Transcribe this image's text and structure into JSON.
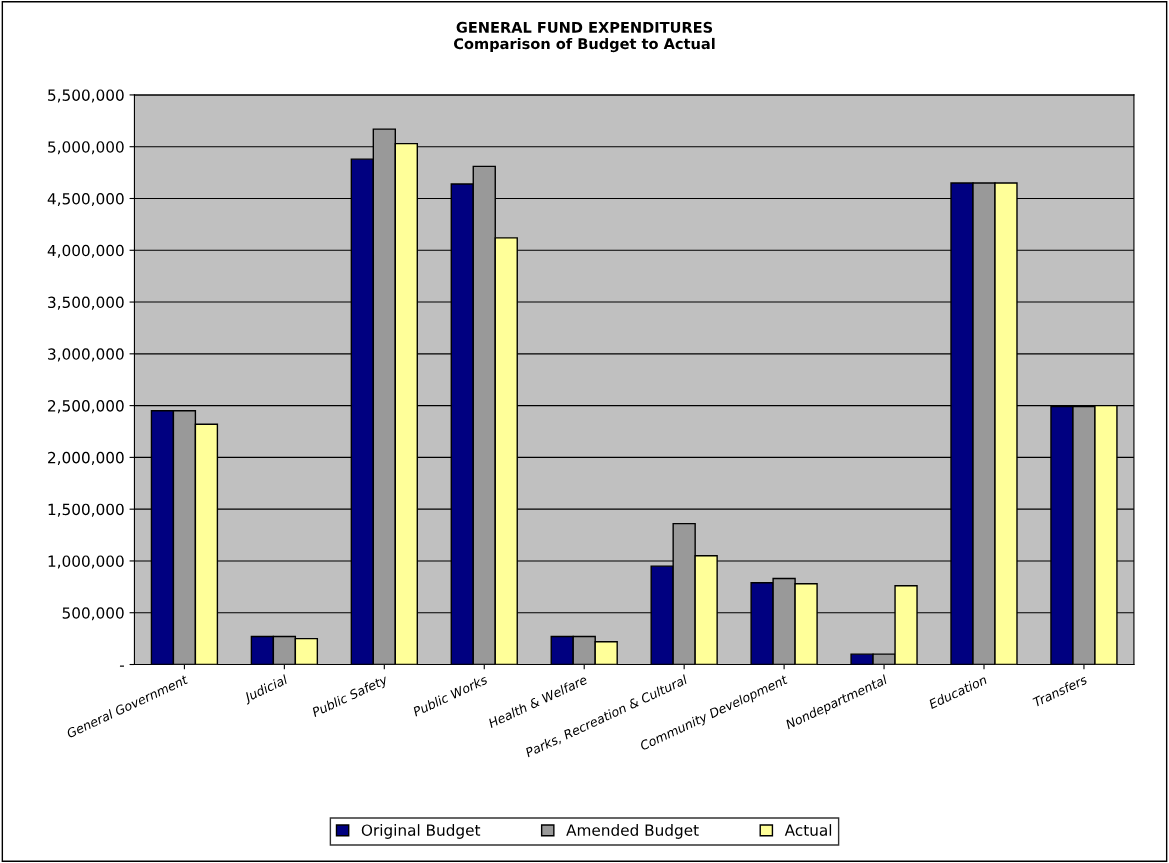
{
  "chart_data": {
    "type": "bar",
    "title": "GENERAL FUND EXPENDITURES\nComparison of Budget to Actual",
    "categories": [
      "General Government",
      "Judicial",
      "Public Safety",
      "Public Works",
      "Health & Welfare",
      "Parks, Recreation & Cultural",
      "Community Development",
      "Nondepartmental",
      "Education",
      "Transfers"
    ],
    "series": [
      {
        "name": "Original Budget",
        "color": "#000080",
        "values": [
          2450000,
          270000,
          4880000,
          4640000,
          270000,
          950000,
          790000,
          100000,
          4650000,
          2490000
        ]
      },
      {
        "name": "Amended Budget",
        "color": "#999999",
        "values": [
          2450000,
          270000,
          5170000,
          4810000,
          270000,
          1360000,
          830000,
          100000,
          4650000,
          2490000
        ]
      },
      {
        "name": "Actual",
        "color": "#ffff99",
        "values": [
          2320000,
          250000,
          5030000,
          4120000,
          220000,
          1050000,
          780000,
          760000,
          4650000,
          2500000
        ]
      }
    ],
    "ylim": [
      0,
      5500000
    ],
    "yticks": [
      {
        "value": 0,
        "label": "-"
      },
      {
        "value": 500000,
        "label": "500,000"
      },
      {
        "value": 1000000,
        "label": "1,000,000"
      },
      {
        "value": 1500000,
        "label": "1,500,000"
      },
      {
        "value": 2000000,
        "label": "2,000,000"
      },
      {
        "value": 2500000,
        "label": "2,500,000"
      },
      {
        "value": 3000000,
        "label": "3,000,000"
      },
      {
        "value": 3500000,
        "label": "3,500,000"
      },
      {
        "value": 4000000,
        "label": "4,000,000"
      },
      {
        "value": 4500000,
        "label": "4,500,000"
      },
      {
        "value": 5000000,
        "label": "5,000,000"
      },
      {
        "value": 5500000,
        "label": "5,500,000"
      }
    ],
    "grid": "y",
    "legend": "bottom"
  }
}
